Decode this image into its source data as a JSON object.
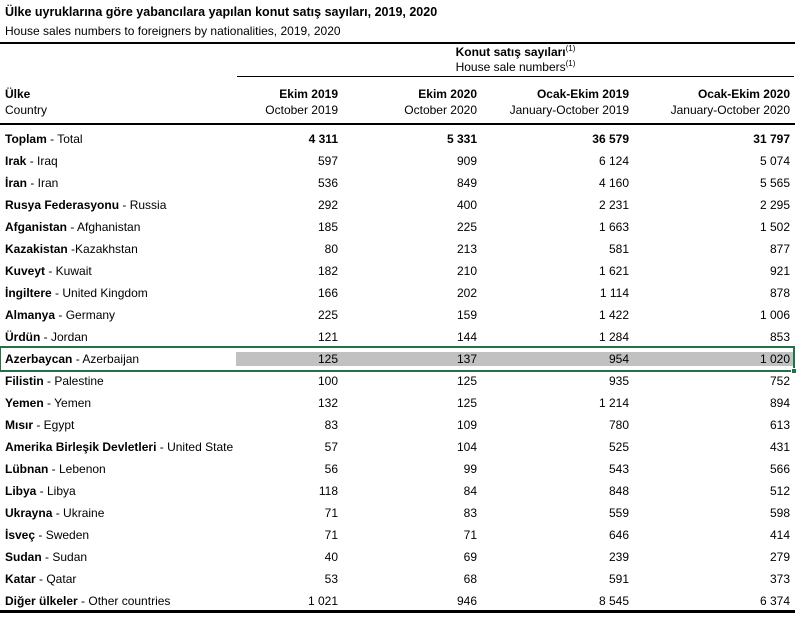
{
  "page": {
    "title_tr": "Ülke uyruklarına göre yabancılara yapılan konut satış sayıları, 2019, 2020",
    "title_en": "House sales numbers to foreigners by nationalities, 2019, 2020"
  },
  "table": {
    "group_header": {
      "tr": "Konut satış sayıları",
      "en": "House sale numbers",
      "footnote_marker": "(1)"
    },
    "country_header": {
      "tr": "Ülke",
      "en": "Country"
    },
    "columns": [
      {
        "tr": "Ekim 2019",
        "en": "October 2019"
      },
      {
        "tr": "Ekim 2020",
        "en": "October 2020"
      },
      {
        "tr": "Ocak-Ekim 2019",
        "en": "January-October 2019"
      },
      {
        "tr": "Ocak-Ekim 2020",
        "en": "January-October 2020"
      }
    ],
    "rows": [
      {
        "tr": "Toplam",
        "rest": " - Total",
        "values": [
          "4 311",
          "5 331",
          "36 579",
          "31 797"
        ],
        "total": true,
        "highlighted": false
      },
      {
        "tr": "Irak",
        "rest": " - Iraq",
        "values": [
          "597",
          "909",
          "6 124",
          "5 074"
        ],
        "total": false,
        "highlighted": false
      },
      {
        "tr": "İran",
        "rest": " - Iran",
        "values": [
          "536",
          "849",
          "4 160",
          "5 565"
        ],
        "total": false,
        "highlighted": false
      },
      {
        "tr": "Rusya Federasyonu",
        "rest": " - Russia",
        "values": [
          "292",
          "400",
          "2 231",
          "2 295"
        ],
        "total": false,
        "highlighted": false
      },
      {
        "tr": "Afganistan",
        "rest": " - Afghanistan",
        "values": [
          "185",
          "225",
          "1 663",
          "1 502"
        ],
        "total": false,
        "highlighted": false
      },
      {
        "tr": "Kazakistan",
        "rest": " -Kazakhstan",
        "values": [
          "80",
          "213",
          "581",
          "877"
        ],
        "total": false,
        "highlighted": false
      },
      {
        "tr": "Kuveyt",
        "rest": " - Kuwait",
        "values": [
          "182",
          "210",
          "1 621",
          "921"
        ],
        "total": false,
        "highlighted": false
      },
      {
        "tr": "İngiltere",
        "rest": " - United Kingdom",
        "values": [
          "166",
          "202",
          "1 114",
          "878"
        ],
        "total": false,
        "highlighted": false
      },
      {
        "tr": "Almanya",
        "rest": " - Germany",
        "values": [
          "225",
          "159",
          "1 422",
          "1 006"
        ],
        "total": false,
        "highlighted": false
      },
      {
        "tr": "Ürdün",
        "rest": " - Jordan",
        "values": [
          "121",
          "144",
          "1 284",
          "853"
        ],
        "total": false,
        "highlighted": false
      },
      {
        "tr": "Azerbaycan",
        "rest": " - Azerbaijan",
        "values": [
          "125",
          "137",
          "954",
          "1 020"
        ],
        "total": false,
        "highlighted": true
      },
      {
        "tr": "Filistin",
        "rest": " - Palestine",
        "values": [
          "100",
          "125",
          "935",
          "752"
        ],
        "total": false,
        "highlighted": false
      },
      {
        "tr": "Yemen",
        "rest": " - Yemen",
        "values": [
          "132",
          "125",
          "1 214",
          "894"
        ],
        "total": false,
        "highlighted": false
      },
      {
        "tr": "Mısır",
        "rest": " - Egypt",
        "values": [
          "83",
          "109",
          "780",
          "613"
        ],
        "total": false,
        "highlighted": false
      },
      {
        "tr": "Amerika Birleşik Devletleri",
        "rest": " - United State",
        "values": [
          "57",
          "104",
          "525",
          "431"
        ],
        "total": false,
        "highlighted": false
      },
      {
        "tr": "Lübnan",
        "rest": " - Lebenon",
        "values": [
          "56",
          "99",
          "543",
          "566"
        ],
        "total": false,
        "highlighted": false
      },
      {
        "tr": "Libya",
        "rest": " - Libya",
        "values": [
          "118",
          "84",
          "848",
          "512"
        ],
        "total": false,
        "highlighted": false
      },
      {
        "tr": "Ukrayna",
        "rest": " - Ukraine",
        "values": [
          "71",
          "83",
          "559",
          "598"
        ],
        "total": false,
        "highlighted": false
      },
      {
        "tr": "İsveç",
        "rest": " - Sweden",
        "values": [
          "71",
          "71",
          "646",
          "414"
        ],
        "total": false,
        "highlighted": false
      },
      {
        "tr": "Sudan",
        "rest": " - Sudan",
        "values": [
          "40",
          "69",
          "239",
          "279"
        ],
        "total": false,
        "highlighted": false
      },
      {
        "tr": "Katar",
        "rest": " - Qatar",
        "values": [
          "53",
          "68",
          "591",
          "373"
        ],
        "total": false,
        "highlighted": false
      },
      {
        "tr": "Diğer ülkeler",
        "rest": " - Other countries",
        "values": [
          "1 021",
          "946",
          "8 545",
          "6 374"
        ],
        "total": false,
        "highlighted": false
      }
    ]
  },
  "colors": {
    "selection_green": "#217346",
    "highlight_fill": "#C1C1C1",
    "text": "#000000",
    "background": "#FFFFFF"
  }
}
